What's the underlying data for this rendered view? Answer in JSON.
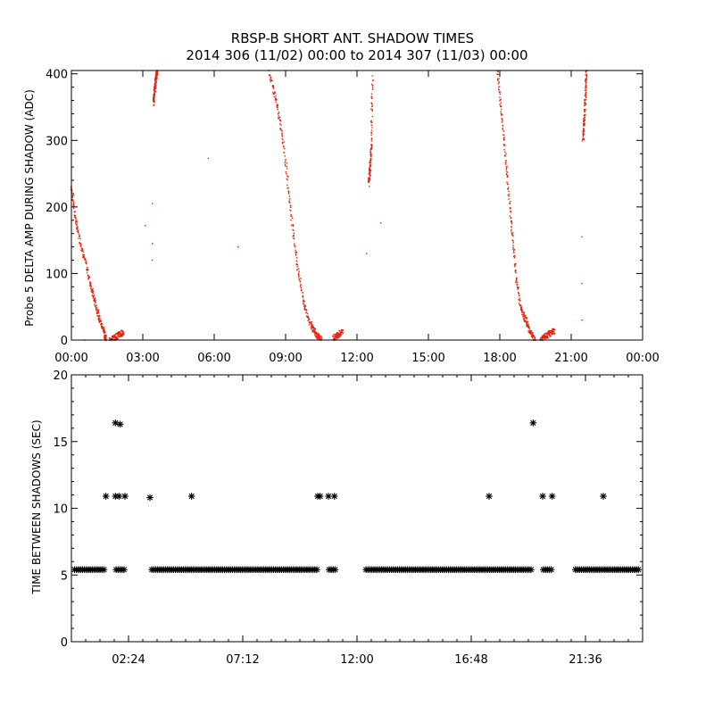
{
  "title_line1": "RBSP-B SHORT ANT. SHADOW TIMES",
  "title_line2": "2014 306 (11/02) 00:00 to 2014 307 (11/03) 00:00",
  "colors": {
    "trace": "#e8200a",
    "marker": "#000000",
    "axes": "#000000"
  },
  "chart_data": [
    {
      "type": "scatter",
      "ylabel": "Probe 5 DELTA AMP DURING SHADOW (ADC)",
      "xlim": [
        0,
        24
      ],
      "ylim": [
        0,
        405
      ],
      "xticks": [
        0,
        3,
        6,
        9,
        12,
        15,
        18,
        21,
        24
      ],
      "xtick_labels": [
        "00:00",
        "03:00",
        "06:00",
        "09:00",
        "12:00",
        "15:00",
        "18:00",
        "21:00",
        "00:00"
      ],
      "yticks": [
        0,
        100,
        200,
        300,
        400
      ],
      "ytick_labels": [
        "0",
        "100",
        "200",
        "300",
        "400"
      ],
      "series": [
        {
          "color": "#e8200a",
          "segments": [
            {
              "x": [
                0.0,
                0.2,
                0.5,
                0.8,
                1.0,
                1.2,
                1.4,
                1.45
              ],
              "y": [
                230,
                175,
                130,
                85,
                55,
                30,
                10,
                0
              ]
            },
            {
              "x": [
                1.6,
                1.8,
                2.0,
                2.2
              ],
              "y": [
                0,
                3,
                8,
                12
              ]
            },
            {
              "x": [
                3.45,
                3.5,
                3.55,
                3.6
              ],
              "y": [
                355,
                375,
                392,
                405
              ]
            },
            {
              "x": [
                8.3,
                8.6,
                8.9,
                9.2,
                9.5,
                9.8,
                10.1,
                10.3,
                10.5
              ],
              "y": [
                405,
                360,
                300,
                200,
                110,
                50,
                20,
                8,
                0
              ]
            },
            {
              "x": [
                11.0,
                11.2,
                11.4
              ],
              "y": [
                2,
                8,
                12
              ]
            },
            {
              "x": [
                12.5,
                12.55,
                12.6,
                12.65
              ],
              "y": [
                235,
                260,
                290,
                395
              ]
            },
            {
              "x": [
                17.9,
                18.1,
                18.3,
                18.5,
                18.7,
                18.9,
                19.1,
                19.3,
                19.5
              ],
              "y": [
                405,
                330,
                250,
                170,
                90,
                45,
                30,
                10,
                0
              ]
            },
            {
              "x": [
                19.7,
                19.9,
                20.1,
                20.3
              ],
              "y": [
                0,
                5,
                10,
                14
              ]
            },
            {
              "x": [
                21.5,
                21.55,
                21.6,
                21.65
              ],
              "y": [
                300,
                330,
                370,
                405
              ]
            }
          ],
          "isolated_points": [
            {
              "x": 0.55,
              "y": 0
            },
            {
              "x": 3.4,
              "y": 205
            },
            {
              "x": 3.4,
              "y": 145
            },
            {
              "x": 3.4,
              "y": 120
            },
            {
              "x": 3.1,
              "y": 172
            },
            {
              "x": 5.75,
              "y": 273
            },
            {
              "x": 7.0,
              "y": 140
            },
            {
              "x": 12.4,
              "y": 130
            },
            {
              "x": 13.0,
              "y": 176
            },
            {
              "x": 21.45,
              "y": 155
            },
            {
              "x": 21.45,
              "y": 85
            },
            {
              "x": 21.45,
              "y": 30
            }
          ]
        }
      ]
    },
    {
      "type": "scatter",
      "ylabel": "TIME BETWEEN SHADOWS (SEC)",
      "xlim": [
        0,
        24
      ],
      "ylim": [
        0,
        20
      ],
      "xticks": [
        2.4,
        7.2,
        12.0,
        16.8,
        21.6
      ],
      "xtick_labels": [
        "02:24",
        "07:12",
        "12:00",
        "16:48",
        "21:36"
      ],
      "minor_xticks": [
        0.6,
        1.2,
        1.8,
        3.0,
        3.6,
        4.2,
        4.8,
        5.4,
        6.0,
        6.6,
        7.8,
        8.4,
        9.0,
        9.6,
        10.2,
        10.8,
        11.4,
        12.6,
        13.2,
        13.8,
        14.4,
        15.0,
        15.6,
        16.2,
        17.4,
        18.0,
        18.6,
        19.2,
        19.8,
        20.4,
        21.0,
        22.2,
        22.8,
        23.4
      ],
      "yticks": [
        0,
        5,
        10,
        15,
        20
      ],
      "ytick_labels": [
        "0",
        "5",
        "10",
        "15",
        "20"
      ],
      "marker": "*",
      "series": [
        {
          "color": "#000000",
          "baseline_value": 5.4,
          "baseline_ranges": [
            [
              0.0,
              1.55
            ],
            [
              1.75,
              2.35
            ],
            [
              3.25,
              10.45
            ],
            [
              10.7,
              11.25
            ],
            [
              12.25,
              19.5
            ],
            [
              19.7,
              20.35
            ],
            [
              21.05,
              24.0
            ]
          ],
          "points": [
            {
              "x": 1.45,
              "y": 10.9
            },
            {
              "x": 1.85,
              "y": 10.9
            },
            {
              "x": 2.0,
              "y": 10.9
            },
            {
              "x": 2.25,
              "y": 10.9
            },
            {
              "x": 1.85,
              "y": 16.4
            },
            {
              "x": 2.05,
              "y": 16.3
            },
            {
              "x": 3.3,
              "y": 10.8
            },
            {
              "x": 5.05,
              "y": 10.9
            },
            {
              "x": 10.35,
              "y": 10.9
            },
            {
              "x": 10.45,
              "y": 10.9
            },
            {
              "x": 10.8,
              "y": 10.9
            },
            {
              "x": 11.05,
              "y": 10.9
            },
            {
              "x": 17.55,
              "y": 10.9
            },
            {
              "x": 19.4,
              "y": 16.4
            },
            {
              "x": 19.8,
              "y": 10.9
            },
            {
              "x": 20.2,
              "y": 10.9
            },
            {
              "x": 22.35,
              "y": 10.9
            }
          ]
        }
      ]
    }
  ]
}
